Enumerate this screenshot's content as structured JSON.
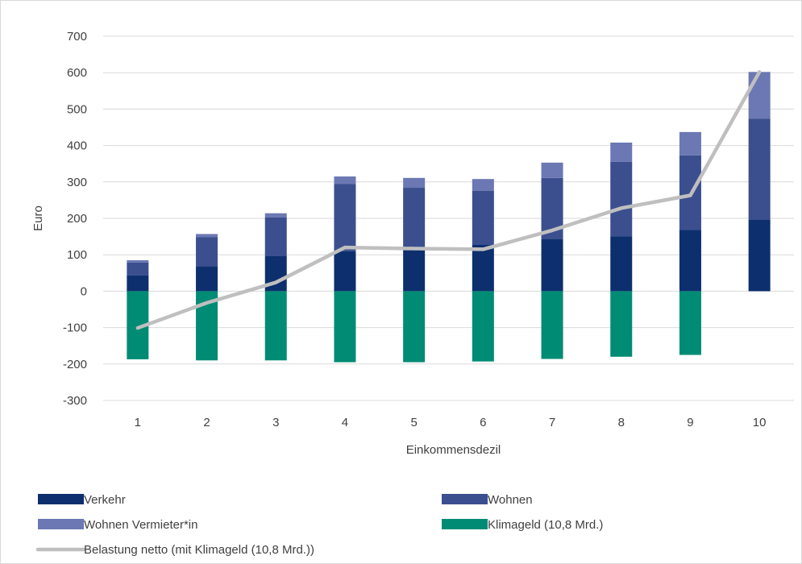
{
  "chart_data": {
    "type": "bar",
    "stacked": true,
    "categories": [
      "1",
      "2",
      "3",
      "4",
      "5",
      "6",
      "7",
      "8",
      "9",
      "10"
    ],
    "xlabel": "Einkommensdezil",
    "ylabel": "Euro",
    "ylim": [
      -300,
      700
    ],
    "yticks": [
      "700",
      "600",
      "500",
      "400",
      "300",
      "200",
      "100",
      "0",
      "-100",
      "-200",
      "-300"
    ],
    "grid": true,
    "legend_position": "bottom",
    "series": [
      {
        "name": "Verkehr",
        "kind": "bar",
        "color": "#0d2f6e",
        "values": [
          43,
          69,
          96,
          110,
          116,
          127,
          144,
          151,
          168,
          197
        ]
      },
      {
        "name": "Wohnen",
        "kind": "bar",
        "color": "#3b4f8f",
        "values": [
          36,
          79,
          107,
          184,
          168,
          149,
          167,
          204,
          205,
          277
        ]
      },
      {
        "name": "Wohnen Vermieter*in",
        "kind": "bar",
        "color": "#6b78b3",
        "values": [
          6,
          9,
          11,
          21,
          27,
          32,
          42,
          53,
          64,
          128
        ]
      },
      {
        "name": "Klimageld (10,8 Mrd.)",
        "kind": "bar",
        "color": "#008b74",
        "values": [
          -187,
          -190,
          -190,
          -195,
          -195,
          -193,
          -186,
          -180,
          -175,
          0
        ]
      },
      {
        "name": "Belastung netto (mit Klimageld (10,8 Mrd.))",
        "kind": "line",
        "color": "#bfbfbf",
        "values": [
          -101,
          -32,
          24,
          120,
          117,
          115,
          167,
          228,
          263,
          602
        ]
      }
    ]
  }
}
